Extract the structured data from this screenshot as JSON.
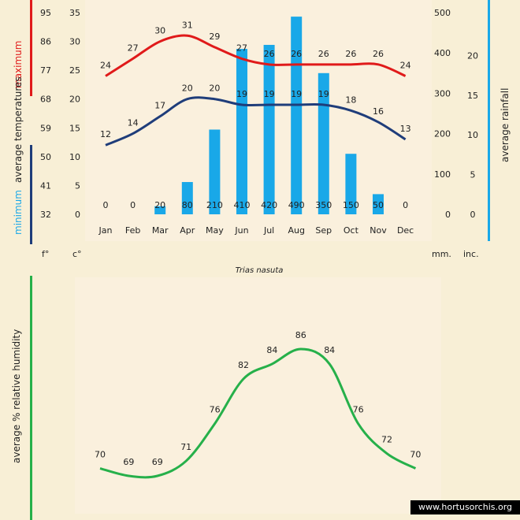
{
  "caption": "Trias nasuta",
  "credit": "www.hortusorchis.org",
  "colors": {
    "background": "#f8efd6",
    "panel": "#faf0dd",
    "max_temp": "#e01a1a",
    "min_temp": "#1f3d7a",
    "rainfall": "#19a8e8",
    "humidity": "#26b04a"
  },
  "chart_data": [
    {
      "type": "bar+line",
      "categories": [
        "Jan",
        "Feb",
        "Mar",
        "Apr",
        "May",
        "Jun",
        "Jul",
        "Aug",
        "Sep",
        "Oct",
        "Nov",
        "Dec"
      ],
      "series": [
        {
          "name": "maximum",
          "type": "line",
          "axis": "celsius",
          "values": [
            24,
            27,
            30,
            31,
            29,
            27,
            26,
            26,
            26,
            26,
            26,
            24
          ]
        },
        {
          "name": "minimum",
          "type": "line",
          "axis": "celsius",
          "values": [
            12,
            14,
            17,
            20,
            20,
            19,
            19,
            19,
            19,
            18,
            16,
            13
          ]
        },
        {
          "name": "average rainfall",
          "type": "bar",
          "axis": "mm",
          "values": [
            0,
            0,
            20,
            80,
            210,
            410,
            420,
            490,
            350,
            150,
            50,
            0
          ]
        }
      ],
      "axes": {
        "fahrenheit": {
          "unit_label": "f°",
          "ticks": [
            32,
            41,
            50,
            59,
            68,
            77,
            86,
            95
          ]
        },
        "celsius": {
          "unit_label": "c°",
          "ticks": [
            0,
            5,
            10,
            15,
            20,
            25,
            30,
            35
          ],
          "range": [
            0,
            35
          ]
        },
        "mm": {
          "unit_label": "mm.",
          "ticks": [
            0,
            100,
            200,
            300,
            400,
            500
          ],
          "range": [
            0,
            500
          ]
        },
        "inches": {
          "unit_label": "inc.",
          "ticks": [
            0,
            5,
            10,
            15,
            20
          ]
        }
      },
      "left_axis_title": {
        "maximum": "maximum",
        "average_temperatures": "average temperatures",
        "minimum": "minimum"
      },
      "right_axis_title": "average rainfall"
    },
    {
      "type": "line",
      "ylabel": "average %  relative humidity",
      "categories": [
        "Jan",
        "Feb",
        "Mar",
        "Apr",
        "May",
        "Jun",
        "Jul",
        "Aug",
        "Sep",
        "Oct",
        "Nov",
        "Dec"
      ],
      "values": [
        70,
        69,
        69,
        71,
        76,
        82,
        84,
        86,
        84,
        76,
        72,
        70
      ]
    }
  ]
}
